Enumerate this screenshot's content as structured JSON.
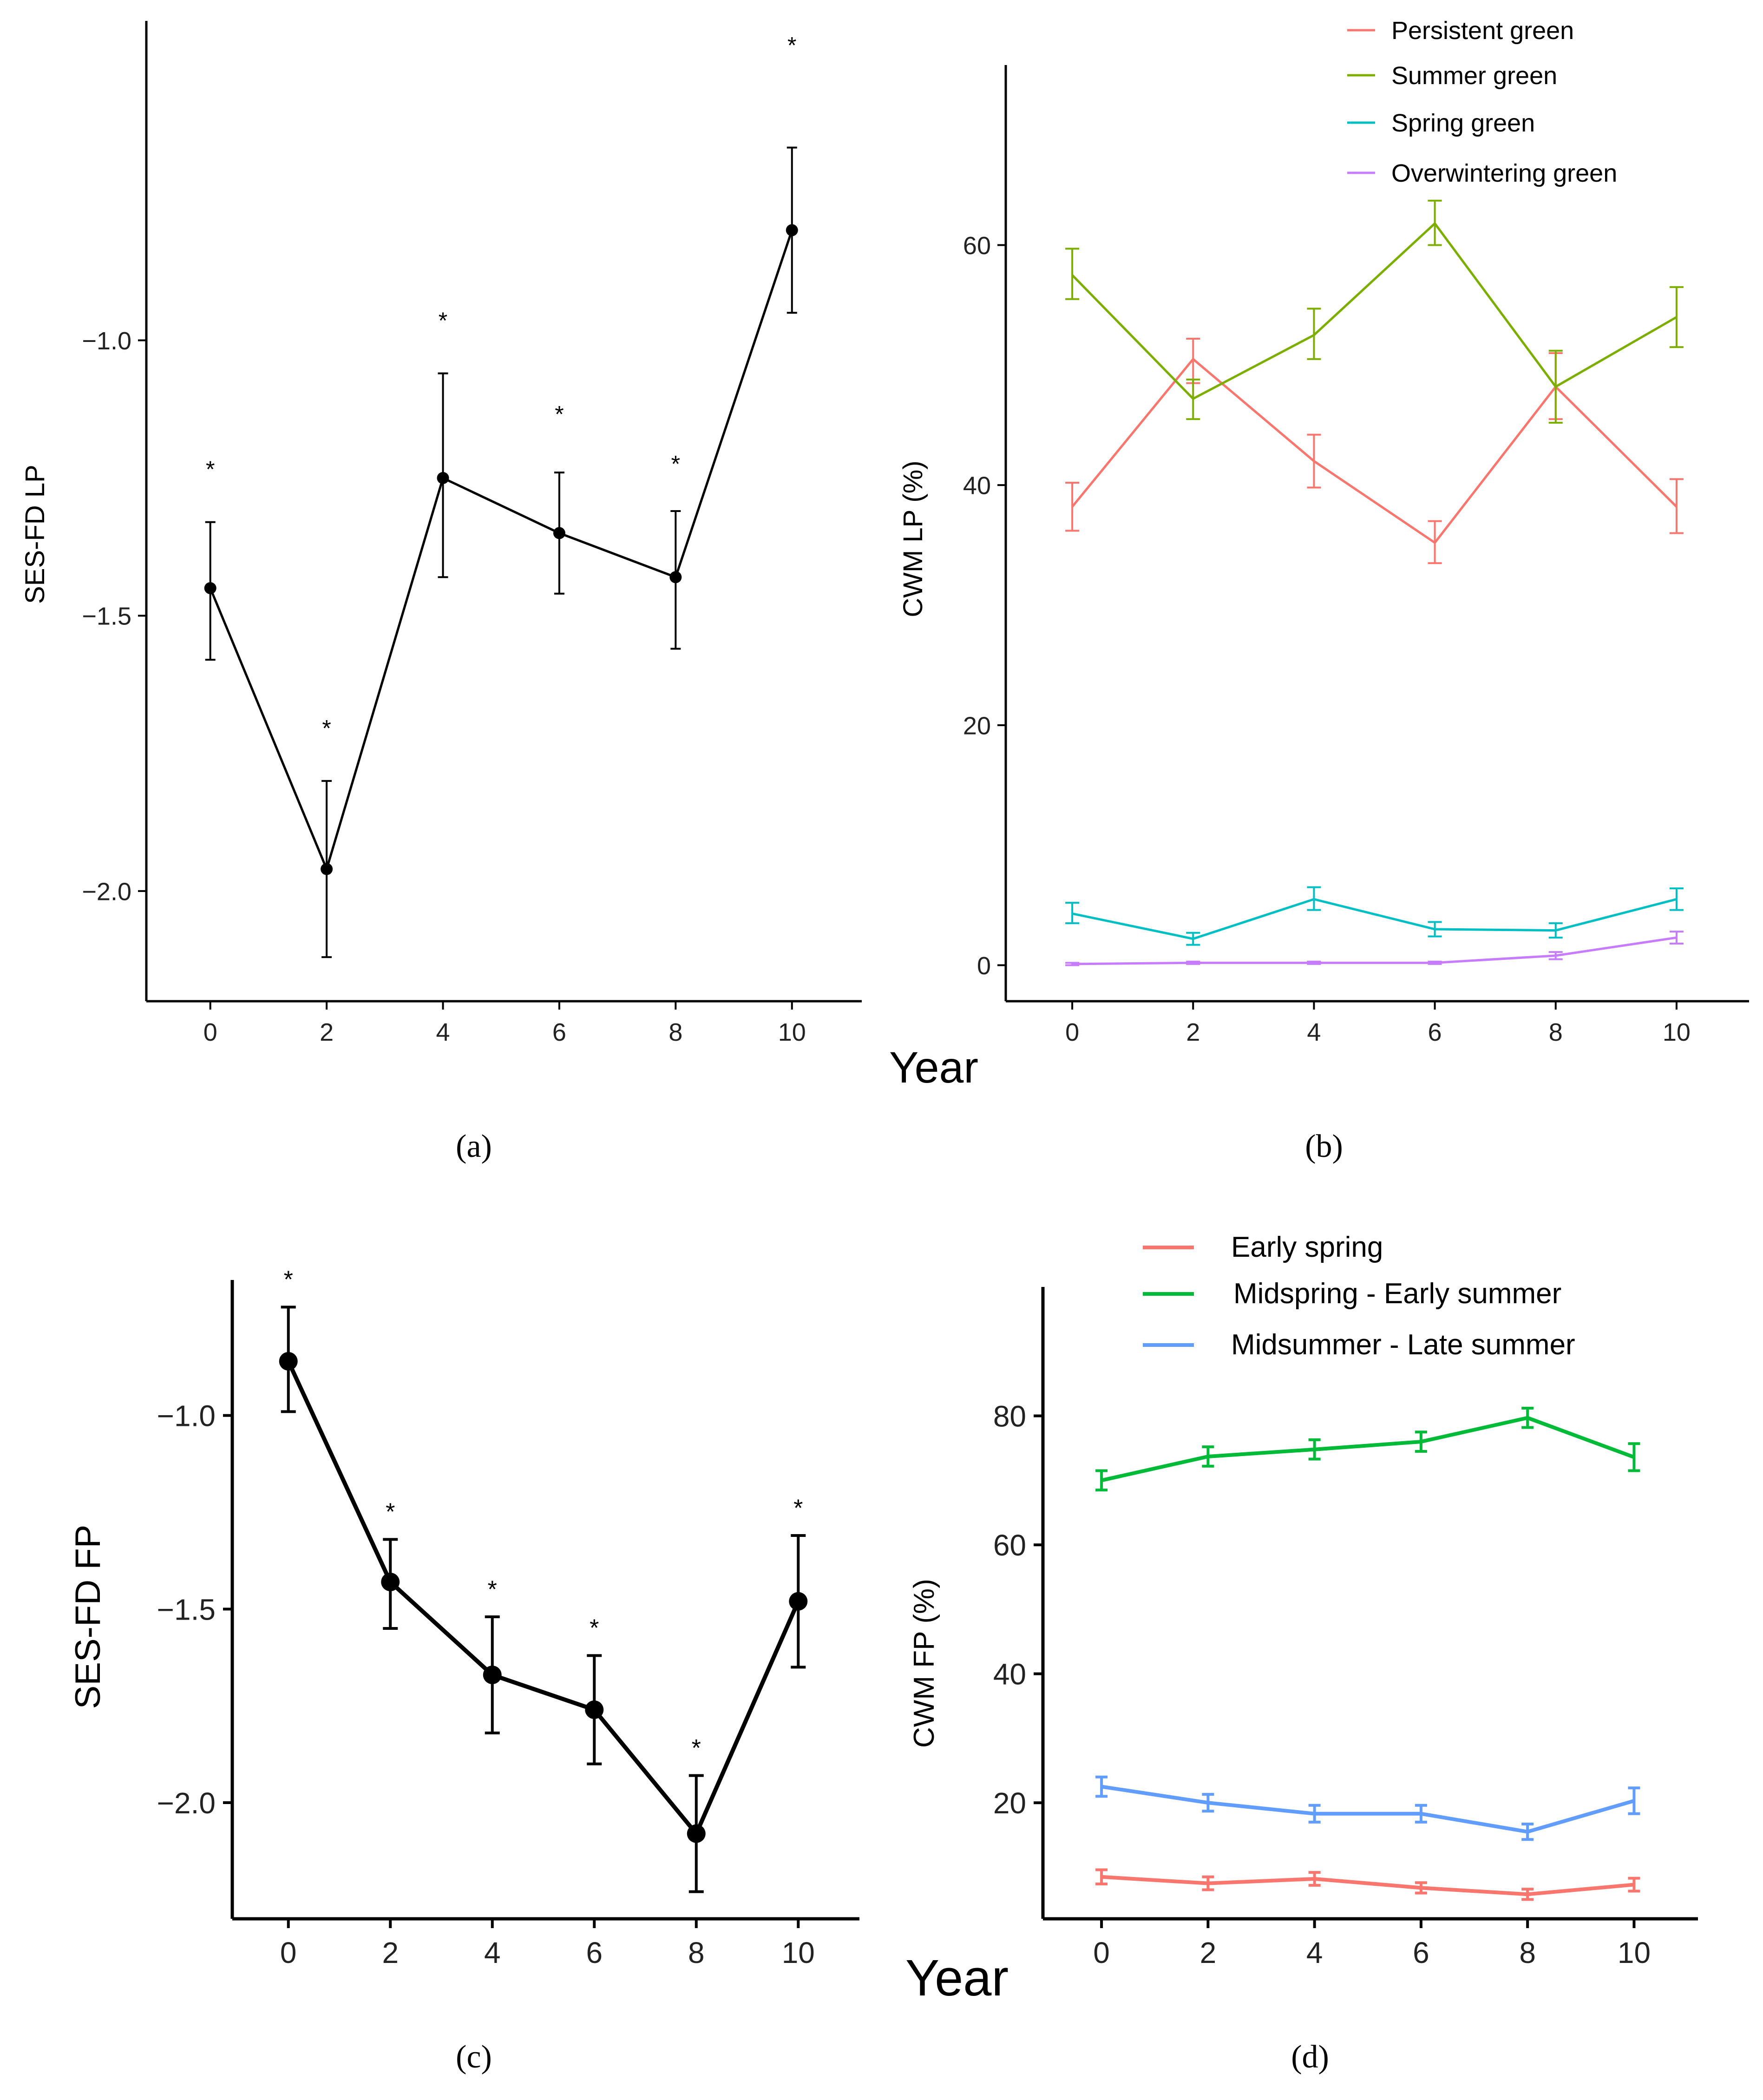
{
  "chart_data": [
    {
      "panel_label": "a",
      "type": "line",
      "ylabel": "SES-FD LP",
      "xlabel": "Year",
      "x": [
        0,
        2,
        4,
        6,
        8,
        10
      ],
      "xticks": [
        "0",
        "2",
        "4",
        "6",
        "8",
        "10"
      ],
      "ylim": [
        -2.2,
        -0.42
      ],
      "yticks": [
        -1.0,
        -1.5,
        -2.0
      ],
      "ytick_labels": [
        "−1.0",
        "−1.5",
        "−2.0"
      ],
      "series": [
        {
          "name": "SES-FD LP",
          "color": "#000000",
          "values": [
            -1.45,
            -1.96,
            -1.25,
            -1.35,
            -1.43,
            -0.8
          ],
          "err_low": [
            -1.58,
            -2.12,
            -1.43,
            -1.46,
            -1.56,
            -0.95
          ],
          "err_high": [
            -1.33,
            -1.8,
            -1.06,
            -1.24,
            -1.31,
            -0.65
          ]
        }
      ],
      "annotations": [
        {
          "x": 0,
          "y": -1.23,
          "text": "*"
        },
        {
          "x": 2,
          "y": -1.7,
          "text": "*"
        },
        {
          "x": 4,
          "y": -0.96,
          "text": "*"
        },
        {
          "x": 6,
          "y": -1.13,
          "text": "*"
        },
        {
          "x": 8,
          "y": -1.22,
          "text": "*"
        },
        {
          "x": 10,
          "y": -0.46,
          "text": "*"
        }
      ]
    },
    {
      "panel_label": "b",
      "type": "line",
      "ylabel": "CWM LP (%)",
      "xlabel": "",
      "x": [
        0,
        2,
        4,
        6,
        8,
        10
      ],
      "xticks": [
        "0",
        "2",
        "4",
        "6",
        "8",
        "10"
      ],
      "ylim": [
        -3,
        75
      ],
      "yticks": [
        0,
        20,
        40,
        60
      ],
      "ytick_labels": [
        "0",
        "20",
        "40",
        "60"
      ],
      "legend_position": "top-right",
      "series": [
        {
          "name": "Persistent green",
          "color": "#F8766D",
          "values": [
            38.2,
            50.5,
            42.0,
            35.2,
            48.2,
            38.2
          ],
          "err_low": [
            36.2,
            48.5,
            39.8,
            33.5,
            45.5,
            36.0
          ],
          "err_high": [
            40.2,
            52.2,
            44.2,
            37.0,
            51.0,
            40.5
          ]
        },
        {
          "name": "Summer green",
          "color": "#7CAE00",
          "values": [
            57.5,
            47.2,
            52.5,
            61.8,
            48.2,
            54.0
          ],
          "err_low": [
            55.5,
            45.5,
            50.5,
            60.0,
            45.2,
            51.5
          ],
          "err_high": [
            59.7,
            48.8,
            54.7,
            63.7,
            51.2,
            56.5
          ]
        },
        {
          "name": "Spring green",
          "color": "#00BFC4",
          "values": [
            4.3,
            2.2,
            5.5,
            3.0,
            2.9,
            5.5
          ],
          "err_low": [
            3.5,
            1.7,
            4.6,
            2.4,
            2.3,
            4.6
          ],
          "err_high": [
            5.2,
            2.7,
            6.5,
            3.6,
            3.5,
            6.4
          ]
        },
        {
          "name": "Overwintering green",
          "color": "#C77CFF",
          "values": [
            0.1,
            0.2,
            0.2,
            0.2,
            0.8,
            2.3
          ],
          "err_low": [
            0.0,
            0.1,
            0.1,
            0.1,
            0.5,
            1.8
          ],
          "err_high": [
            0.2,
            0.3,
            0.3,
            0.3,
            1.1,
            2.8
          ]
        }
      ]
    },
    {
      "panel_label": "c",
      "type": "line",
      "ylabel": "SES-FD FP",
      "xlabel": "Year",
      "x": [
        0,
        2,
        4,
        6,
        8,
        10
      ],
      "xticks": [
        "0",
        "2",
        "4",
        "6",
        "8",
        "10"
      ],
      "ylim": [
        -2.3,
        -0.65
      ],
      "yticks": [
        -1.0,
        -1.5,
        -2.0
      ],
      "ytick_labels": [
        "−1.0",
        "−1.5",
        "−2.0"
      ],
      "series": [
        {
          "name": "SES-FD FP",
          "color": "#000000",
          "values": [
            -0.86,
            -1.43,
            -1.67,
            -1.76,
            -2.08,
            -1.48
          ],
          "err_low": [
            -0.99,
            -1.55,
            -1.82,
            -1.9,
            -2.23,
            -1.65
          ],
          "err_high": [
            -0.72,
            -1.32,
            -1.52,
            -1.62,
            -1.93,
            -1.31
          ]
        }
      ],
      "annotations": [
        {
          "x": 0,
          "y": -0.67,
          "text": "*"
        },
        {
          "x": 2,
          "y": -1.27,
          "text": "*"
        },
        {
          "x": 4,
          "y": -1.47,
          "text": "*"
        },
        {
          "x": 6,
          "y": -1.57,
          "text": "*"
        },
        {
          "x": 8,
          "y": -1.88,
          "text": "*"
        },
        {
          "x": 10,
          "y": -1.26,
          "text": "*"
        }
      ]
    },
    {
      "panel_label": "d",
      "type": "line",
      "ylabel": "CWM FP (%)",
      "xlabel": "",
      "x": [
        0,
        2,
        4,
        6,
        8,
        10
      ],
      "xticks": [
        "0",
        "2",
        "4",
        "6",
        "8",
        "10"
      ],
      "ylim": [
        2,
        100
      ],
      "yticks": [
        20,
        40,
        60,
        80
      ],
      "ytick_labels": [
        "20",
        "40",
        "60",
        "80"
      ],
      "legend_position": "top",
      "series": [
        {
          "name": "Early spring",
          "color": "#F8766D",
          "values": [
            8.5,
            7.5,
            8.2,
            6.8,
            5.8,
            7.3
          ],
          "err_low": [
            7.4,
            6.5,
            7.2,
            6.0,
            5.0,
            6.3
          ],
          "err_high": [
            9.6,
            8.5,
            9.2,
            7.6,
            6.6,
            8.3
          ]
        },
        {
          "name": "Midspring - Early summer",
          "color": "#00BA38",
          "values": [
            70.0,
            73.7,
            74.8,
            76.0,
            79.7,
            73.6
          ],
          "err_low": [
            68.5,
            72.2,
            73.3,
            74.5,
            78.2,
            71.5
          ],
          "err_high": [
            71.5,
            75.2,
            76.3,
            77.5,
            81.2,
            75.7
          ]
        },
        {
          "name": "Midsummer - Late summer",
          "color": "#619CFF",
          "values": [
            22.5,
            20.0,
            18.3,
            18.3,
            15.5,
            20.3
          ],
          "err_low": [
            21.0,
            18.7,
            17.0,
            17.0,
            14.3,
            18.3
          ],
          "err_high": [
            24.0,
            21.3,
            19.6,
            19.6,
            16.7,
            22.3
          ]
        }
      ]
    }
  ],
  "captions": {
    "a": "(a)",
    "b": "(b)",
    "c": "(c)",
    "d": "(d)"
  }
}
